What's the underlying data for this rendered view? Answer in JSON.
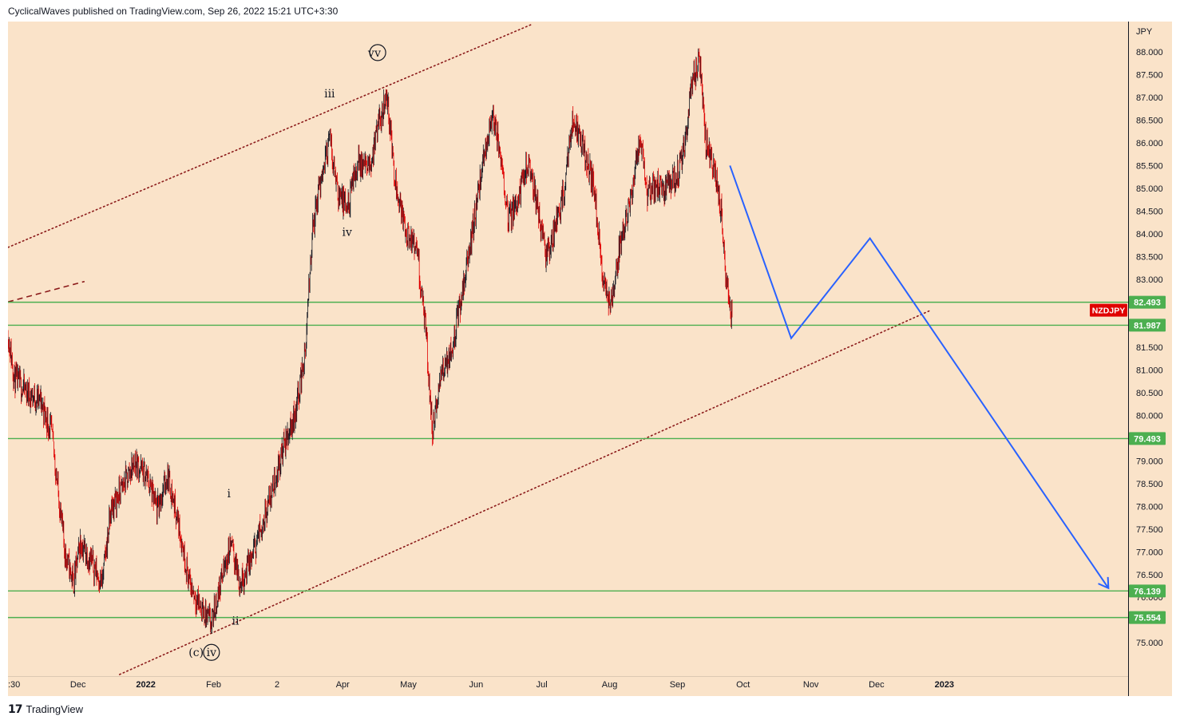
{
  "header": {
    "publisher": "CyclicalWaves published on TradingView.com, Sep 26, 2022 15:21 UTC+3:30"
  },
  "footer": {
    "logo_icon": "tradingview-logo-icon",
    "brand": "TradingView"
  },
  "colors": {
    "background": "#fae3c9",
    "candle_up": "#131722",
    "candle_down": "#e00000",
    "level_line": "#4caf50",
    "channel_line": "#8b1a1a",
    "projection": "#2962ff",
    "badge_price": "#4caf50",
    "badge_symbol": "#e00000"
  },
  "chart_data": {
    "type": "candlestick",
    "symbol": "NZDJPY",
    "currency": "JPY",
    "ylim": [
      74.3,
      88.6
    ],
    "x_range": [
      "2021-10-30",
      "2023-03-26"
    ],
    "y_ticks": [
      "75.000",
      "75.500",
      "76.000",
      "76.500",
      "77.000",
      "77.500",
      "78.000",
      "78.500",
      "79.000",
      "79.500",
      "80.000",
      "80.500",
      "81.000",
      "81.500",
      "82.000",
      "82.500",
      "83.000",
      "83.500",
      "84.000",
      "84.500",
      "85.000",
      "85.500",
      "86.000",
      "86.500",
      "87.000",
      "87.500",
      "88.000"
    ],
    "x_ticks": [
      {
        "label": ":30",
        "date": "2021-10-30"
      },
      {
        "label": "Dec",
        "date": "2021-12-01"
      },
      {
        "label": "2022",
        "date": "2022-01-01"
      },
      {
        "label": "Feb",
        "date": "2022-02-01"
      },
      {
        "label": "2",
        "date": "2022-03-02"
      },
      {
        "label": "Apr",
        "date": "2022-04-01"
      },
      {
        "label": "May",
        "date": "2022-05-01"
      },
      {
        "label": "Jun",
        "date": "2022-06-01"
      },
      {
        "label": "Jul",
        "date": "2022-07-01"
      },
      {
        "label": "Aug",
        "date": "2022-08-01"
      },
      {
        "label": "Sep",
        "date": "2022-09-01"
      },
      {
        "label": "Oct",
        "date": "2022-10-01"
      },
      {
        "label": "Nov",
        "date": "2022-11-01"
      },
      {
        "label": "Dec",
        "date": "2022-12-01"
      },
      {
        "label": "2023",
        "date": "2023-01-01"
      }
    ],
    "price_path": [
      [
        "2021-10-30",
        81.8
      ],
      [
        "2021-11-02",
        80.8
      ],
      [
        "2021-11-08",
        80.5
      ],
      [
        "2021-11-14",
        80.3
      ],
      [
        "2021-11-19",
        79.6
      ],
      [
        "2021-11-25",
        77.0
      ],
      [
        "2021-11-29",
        76.3
      ],
      [
        "2021-12-02",
        77.2
      ],
      [
        "2021-12-07",
        76.8
      ],
      [
        "2021-12-12",
        76.3
      ],
      [
        "2021-12-16",
        77.9
      ],
      [
        "2021-12-22",
        78.5
      ],
      [
        "2021-12-27",
        79.0
      ],
      [
        "2022-01-02",
        78.6
      ],
      [
        "2022-01-06",
        77.9
      ],
      [
        "2022-01-11",
        78.7
      ],
      [
        "2022-01-16",
        77.6
      ],
      [
        "2022-01-21",
        76.3
      ],
      [
        "2022-01-27",
        75.7
      ],
      [
        "2022-01-31",
        75.4
      ],
      [
        "2022-02-04",
        76.3
      ],
      [
        "2022-02-09",
        77.2
      ],
      [
        "2022-02-13",
        76.3
      ],
      [
        "2022-02-18",
        76.8
      ],
      [
        "2022-02-23",
        77.6
      ],
      [
        "2022-02-28",
        78.4
      ],
      [
        "2022-03-05",
        79.3
      ],
      [
        "2022-03-10",
        80.0
      ],
      [
        "2022-03-15",
        81.4
      ],
      [
        "2022-03-18",
        84.0
      ],
      [
        "2022-03-22",
        85.2
      ],
      [
        "2022-03-26",
        86.1
      ],
      [
        "2022-03-30",
        84.9
      ],
      [
        "2022-04-03",
        84.5
      ],
      [
        "2022-04-08",
        85.6
      ],
      [
        "2022-04-13",
        85.4
      ],
      [
        "2022-04-18",
        86.5
      ],
      [
        "2022-04-21",
        87.1
      ],
      [
        "2022-04-25",
        85.2
      ],
      [
        "2022-04-30",
        84.0
      ],
      [
        "2022-05-05",
        83.6
      ],
      [
        "2022-05-09",
        81.8
      ],
      [
        "2022-05-12",
        79.6
      ],
      [
        "2022-05-16",
        80.9
      ],
      [
        "2022-05-21",
        81.5
      ],
      [
        "2022-05-26",
        82.8
      ],
      [
        "2022-05-30",
        84.0
      ],
      [
        "2022-06-04",
        85.5
      ],
      [
        "2022-06-08",
        86.6
      ],
      [
        "2022-06-12",
        85.8
      ],
      [
        "2022-06-16",
        84.3
      ],
      [
        "2022-06-20",
        84.8
      ],
      [
        "2022-06-25",
        85.6
      ],
      [
        "2022-06-29",
        84.6
      ],
      [
        "2022-07-03",
        83.5
      ],
      [
        "2022-07-07",
        84.1
      ],
      [
        "2022-07-11",
        84.9
      ],
      [
        "2022-07-15",
        86.5
      ],
      [
        "2022-07-20",
        85.9
      ],
      [
        "2022-07-25",
        85.0
      ],
      [
        "2022-07-29",
        83.0
      ],
      [
        "2022-08-02",
        82.4
      ],
      [
        "2022-08-06",
        83.8
      ],
      [
        "2022-08-11",
        84.9
      ],
      [
        "2022-08-15",
        86.1
      ],
      [
        "2022-08-18",
        84.8
      ],
      [
        "2022-08-23",
        85.1
      ],
      [
        "2022-08-27",
        85.0
      ],
      [
        "2022-09-01",
        85.3
      ],
      [
        "2022-09-04",
        85.8
      ],
      [
        "2022-09-08",
        87.4
      ],
      [
        "2022-09-11",
        87.8
      ],
      [
        "2022-09-14",
        86.0
      ],
      [
        "2022-09-18",
        85.4
      ],
      [
        "2022-09-21",
        84.5
      ],
      [
        "2022-09-23",
        83.0
      ],
      [
        "2022-09-26",
        82.1
      ]
    ],
    "horizontal_levels": [
      "82.493",
      "81.987",
      "79.493",
      "76.139",
      "75.554"
    ],
    "current_price_label": "NZDJPY",
    "channel": {
      "upper": [
        [
          "2021-10-30",
          83.7
        ],
        [
          "2022-06-26",
          88.6
        ]
      ],
      "lower": [
        [
          "2021-12-20",
          74.3
        ],
        [
          "2022-12-25",
          82.3
        ]
      ]
    },
    "dashed_segment": [
      [
        "2021-10-30",
        82.5
      ],
      [
        "2021-12-04",
        82.95
      ]
    ],
    "projection": [
      [
        "2022-09-25",
        85.5
      ],
      [
        "2022-10-23",
        81.7
      ],
      [
        "2022-11-28",
        83.9
      ],
      [
        "2023-03-17",
        76.2
      ]
    ],
    "wave_labels": [
      {
        "text": "v",
        "date": "2022-04-17",
        "price": 87.9,
        "circled": true
      },
      {
        "text": "v",
        "date": "2022-04-14",
        "price": 87.9,
        "circled": false
      },
      {
        "text": "iii",
        "date": "2022-03-26",
        "price": 87.0,
        "circled": false
      },
      {
        "text": "iv",
        "date": "2022-04-03",
        "price": 83.95,
        "circled": false
      },
      {
        "text": "i",
        "date": "2022-02-08",
        "price": 78.2,
        "circled": false
      },
      {
        "text": "ii",
        "date": "2022-02-11",
        "price": 75.4,
        "circled": false
      },
      {
        "text": "(c)",
        "date": "2022-01-24",
        "price": 74.7,
        "circled": false
      },
      {
        "text": "iv",
        "date": "2022-01-31",
        "price": 74.7,
        "circled": true
      }
    ]
  }
}
